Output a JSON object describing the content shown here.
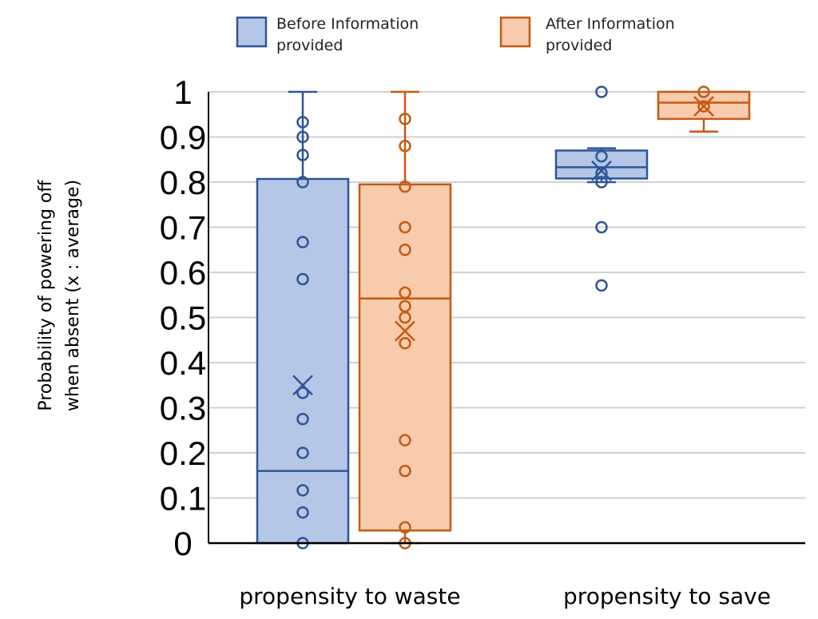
{
  "chart_data": {
    "type": "box",
    "ylabel_line1": "Probability of powering off",
    "ylabel_line2": "when absent (x : average)",
    "ylim": [
      0,
      1
    ],
    "yticks": [
      "0",
      "0.1",
      "0.2",
      "0.3",
      "0.4",
      "0.5",
      "0.6",
      "0.7",
      "0.8",
      "0.9",
      "1"
    ],
    "categories": [
      "propensity to waste",
      "propensity to save"
    ],
    "grid": true,
    "legend_position": "top",
    "series": [
      {
        "name": "Before Information provided",
        "legend_line1": "Before Information",
        "legend_line2": "provided",
        "fill": "#b4c7e7",
        "stroke": "#2f5597",
        "groups": [
          {
            "min": 0.0,
            "q1": 0.0,
            "median": 0.16,
            "q3": 0.807,
            "max": 1.0,
            "mean": 0.35,
            "points": [
              0,
              0.068,
              0.117,
              0.2,
              0.275,
              0.333,
              0.585,
              0.667,
              0.8,
              0.86,
              0.9,
              0.933
            ]
          },
          {
            "min": 0.8,
            "q1": 0.808,
            "median": 0.833,
            "q3": 0.87,
            "max": 0.875,
            "mean": 0.825,
            "points": [
              0.571,
              0.7,
              0.8,
              0.82,
              0.857,
              1.0
            ]
          }
        ]
      },
      {
        "name": "After Information provided",
        "legend_line1": "After Information",
        "legend_line2": "provided",
        "fill": "#f8cbad",
        "stroke": "#c55a11",
        "groups": [
          {
            "min": 0.0,
            "q1": 0.028,
            "median": 0.542,
            "q3": 0.795,
            "max": 1.0,
            "mean": 0.47,
            "points": [
              0,
              0.035,
              0.16,
              0.228,
              0.443,
              0.5,
              0.525,
              0.555,
              0.65,
              0.7,
              0.79,
              0.88,
              0.94
            ]
          },
          {
            "min": 0.912,
            "q1": 0.94,
            "median": 0.976,
            "q3": 1.0,
            "max": 1.0,
            "mean": 0.968,
            "points": [
              0.968,
              1.0
            ]
          }
        ]
      }
    ]
  }
}
